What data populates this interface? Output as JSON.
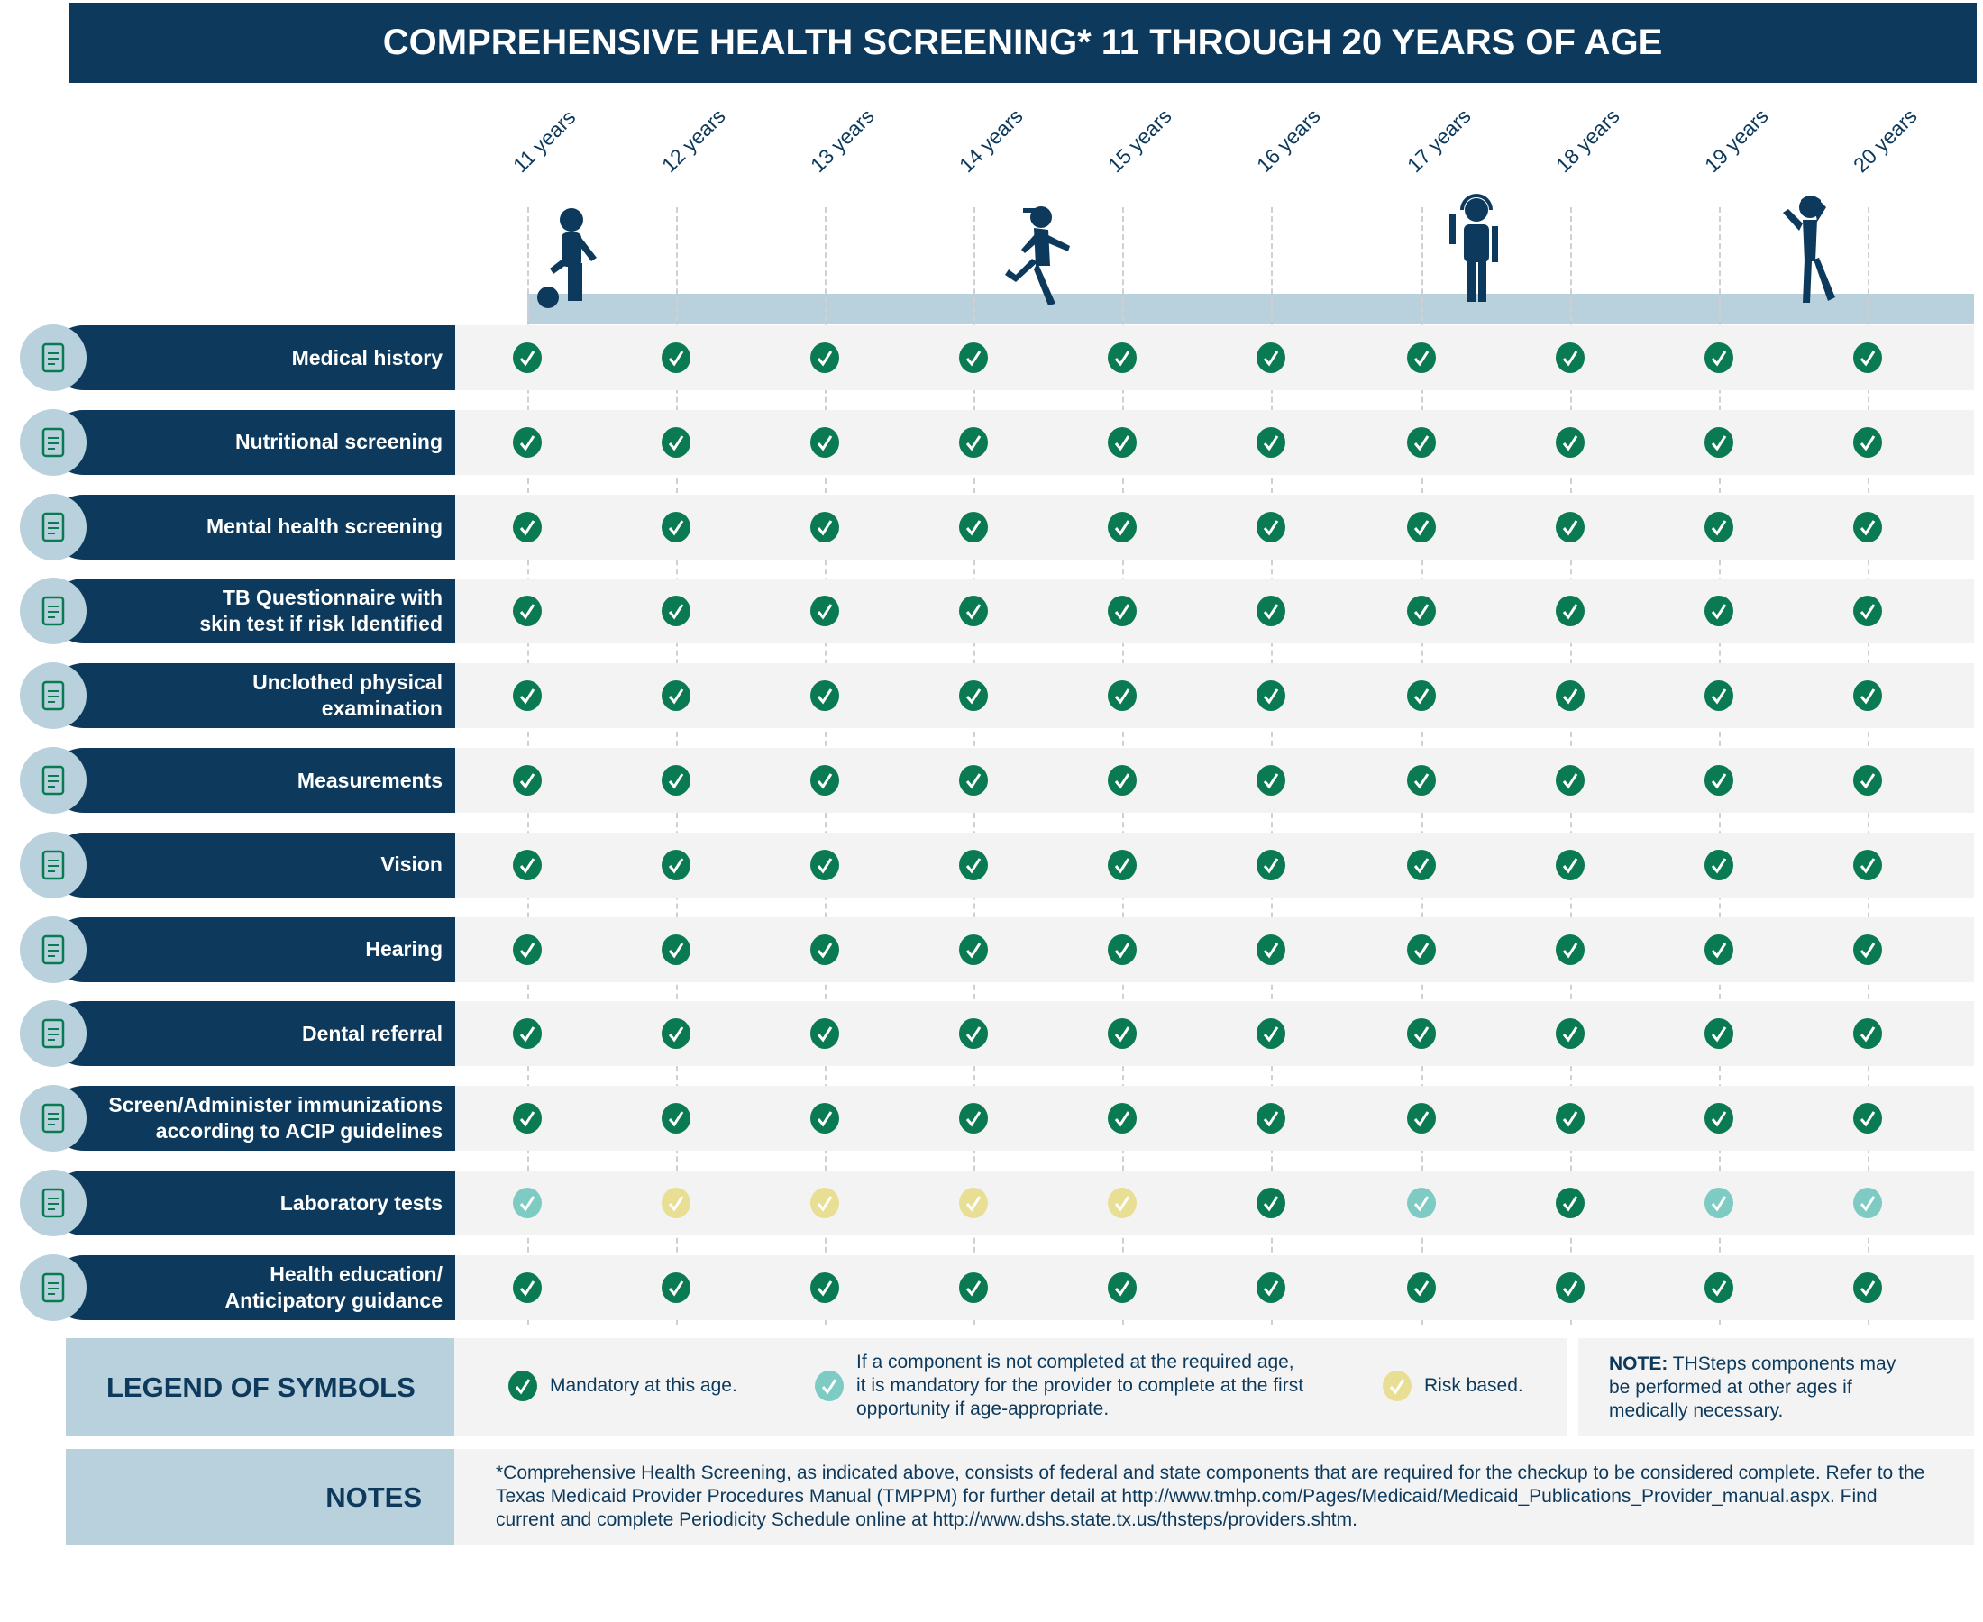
{
  "title": "COMPREHENSIVE HEALTH SCREENING* 11 THROUGH 20 YEARS OF AGE",
  "ages": [
    "11 years",
    "12 years",
    "13 years",
    "14 years",
    "15 years",
    "16 years",
    "17 years",
    "18 years",
    "19 years",
    "20 years"
  ],
  "colors": {
    "navy": "#0d3a5c",
    "light_blue": "#b8d1dc",
    "mandatory": "#0a7a52",
    "catch_up": "#7ecbc3",
    "risk": "#e8df94"
  },
  "rows": [
    {
      "label": "Medical history",
      "icon": "clipboard-icon",
      "marks": [
        "M",
        "M",
        "M",
        "M",
        "M",
        "M",
        "M",
        "M",
        "M",
        "M"
      ]
    },
    {
      "label": "Nutritional screening",
      "icon": "food-icon",
      "marks": [
        "M",
        "M",
        "M",
        "M",
        "M",
        "M",
        "M",
        "M",
        "M",
        "M"
      ]
    },
    {
      "label": "Mental health screening",
      "icon": "heart-plus-icon",
      "marks": [
        "M",
        "M",
        "M",
        "M",
        "M",
        "M",
        "M",
        "M",
        "M",
        "M"
      ]
    },
    {
      "label": "TB Questionnaire with\nskin test if risk Identified",
      "icon": "checklist-icon",
      "marks": [
        "M",
        "M",
        "M",
        "M",
        "M",
        "M",
        "M",
        "M",
        "M",
        "M"
      ]
    },
    {
      "label": "Unclothed physical\nexamination",
      "icon": "stethoscope-icon",
      "marks": [
        "M",
        "M",
        "M",
        "M",
        "M",
        "M",
        "M",
        "M",
        "M",
        "M"
      ]
    },
    {
      "label": "Measurements",
      "icon": "ruler-icon",
      "marks": [
        "M",
        "M",
        "M",
        "M",
        "M",
        "M",
        "M",
        "M",
        "M",
        "M"
      ]
    },
    {
      "label": "Vision",
      "icon": "eye-chart-icon",
      "marks": [
        "M",
        "M",
        "M",
        "M",
        "M",
        "M",
        "M",
        "M",
        "M",
        "M"
      ]
    },
    {
      "label": "Hearing",
      "icon": "ear-icon",
      "marks": [
        "M",
        "M",
        "M",
        "M",
        "M",
        "M",
        "M",
        "M",
        "M",
        "M"
      ]
    },
    {
      "label": "Dental referral",
      "icon": "tooth-icon",
      "marks": [
        "M",
        "M",
        "M",
        "M",
        "M",
        "M",
        "M",
        "M",
        "M",
        "M"
      ]
    },
    {
      "label": "Screen/Administer immunizations\naccording to ACIP guidelines",
      "icon": "syringe-icon",
      "marks": [
        "M",
        "M",
        "M",
        "M",
        "M",
        "M",
        "M",
        "M",
        "M",
        "M"
      ]
    },
    {
      "label": "Laboratory tests",
      "icon": "microscope-icon",
      "marks": [
        "C",
        "R",
        "R",
        "R",
        "R",
        "M",
        "C",
        "M",
        "C",
        "C"
      ]
    },
    {
      "label": "Health education/\nAnticipatory guidance",
      "icon": "book-pencil-icon",
      "marks": [
        "M",
        "M",
        "M",
        "M",
        "M",
        "M",
        "M",
        "M",
        "M",
        "M"
      ]
    }
  ],
  "legend": {
    "title": "LEGEND OF SYMBOLS",
    "mandatory": "Mandatory at this age.",
    "catch_up": "If a component is not completed at the required age,\nit is mandatory for the provider to complete at the first\nopportunity if age-appropriate.",
    "risk": "Risk based.",
    "note_bold": "NOTE:",
    "note": " THSteps components may\nbe performed at other ages if\nmedically necessary."
  },
  "notes": {
    "title": "NOTES",
    "text": "*Comprehensive Health Screening, as indicated above, consists of federal and state components that are required for the checkup to be considered complete. Refer to the Texas Medicaid Provider Procedures Manual (TMPPM) for further detail at http://www.tmhp.com/Pages/Medicaid/Medicaid_Publications_Provider_manual.aspx. Find current and complete Periodicity Schedule online at http://www.dshs.state.tx.us/thsteps/providers.shtm."
  }
}
